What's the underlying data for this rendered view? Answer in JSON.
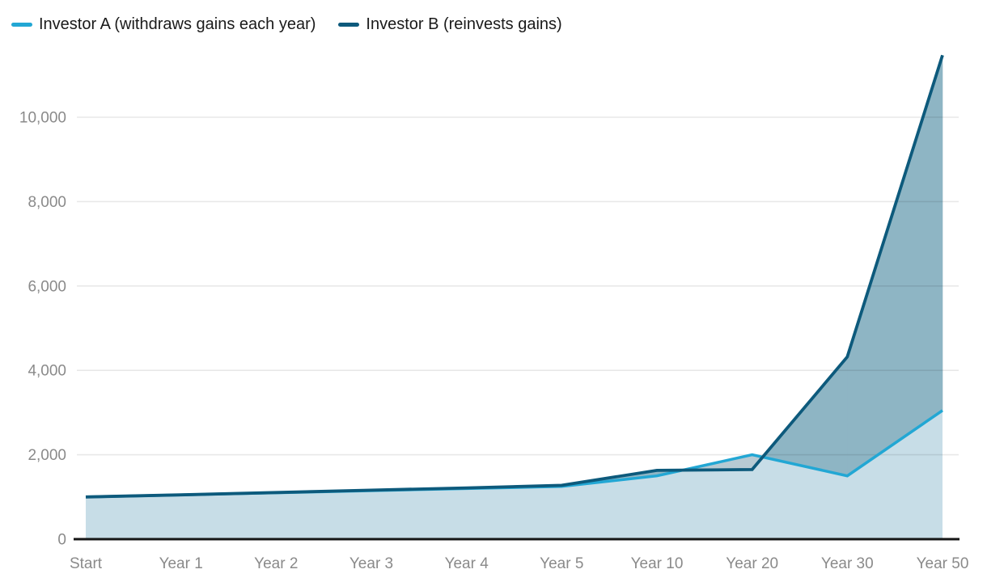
{
  "legend": {
    "items": [
      {
        "label": "Investor A (withdraws gains each year)",
        "color": "#22a7d4"
      },
      {
        "label": "Investor B (reinvests gains)",
        "color": "#0d5a7c"
      }
    ]
  },
  "chart_data": {
    "type": "area",
    "title": "",
    "xlabel": "",
    "ylabel": "",
    "categories": [
      "Start",
      "Year 1",
      "Year 2",
      "Year 3",
      "Year 4",
      "Year 5",
      "Year 10",
      "Year 20",
      "Year 30",
      "Year 50"
    ],
    "series": [
      {
        "name": "Investor A (withdraws gains each year)",
        "color": "#22a7d4",
        "values": [
          1000,
          1050,
          1100,
          1150,
          1200,
          1250,
          1500,
          2000,
          1500,
          3050
        ]
      },
      {
        "name": "Investor B (reinvests gains)",
        "color": "#0d5a7c",
        "values": [
          1000,
          1050,
          1105,
          1160,
          1215,
          1275,
          1630,
          1650,
          4320,
          11470
        ]
      }
    ],
    "yticks": [
      0,
      2000,
      4000,
      6000,
      8000,
      10000
    ],
    "ytick_labels": [
      "0",
      "2,000",
      "4,000",
      "6,000",
      "8,000",
      "10,000"
    ],
    "ylim": [
      0,
      11470
    ],
    "grid": true,
    "legend_position": "top-left",
    "axis_label_color": "#8a8a8a",
    "axis_line_color": "#161616",
    "gridline_color": "#e8e8e8",
    "fills": {
      "under_min": "#c7dde7",
      "b_above_a": "#8eb5c4",
      "a_above_b": "#b7cad3"
    }
  }
}
